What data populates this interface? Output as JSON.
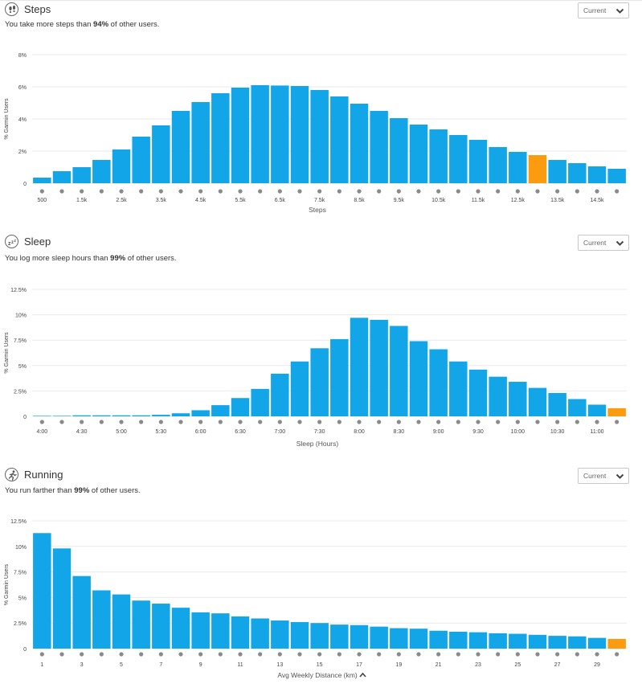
{
  "colors": {
    "bar": "#12a6e8",
    "highlight": "#fb9b0f",
    "grid": "#e9e9e9",
    "dot": "#8a8a8a",
    "text": "#333333"
  },
  "sections": [
    {
      "id": "steps",
      "icon": "footprints-icon",
      "title": "Steps",
      "subtitle_pre": "You take more steps than ",
      "subtitle_pct": "94%",
      "subtitle_post": " of other users.",
      "dropdown_value": "Current",
      "chart_data": {
        "type": "bar",
        "ylabel": "% Garmin Users",
        "xlabel": "Steps",
        "ylim": [
          0,
          8
        ],
        "yticks": [
          0,
          2,
          4,
          6,
          8
        ],
        "ytick_labels": [
          "0",
          "2%",
          "4%",
          "6%",
          "8%"
        ],
        "x_tick_labels": [
          "500",
          "1.5k",
          "2.5k",
          "3.5k",
          "4.5k",
          "5.5k",
          "6.5k",
          "7.5k",
          "8.5k",
          "9.5k",
          "10.5k",
          "11.5k",
          "12.5k",
          "13.5k",
          "14.5k"
        ],
        "values": [
          0.35,
          0.75,
          1.0,
          1.45,
          2.1,
          2.9,
          3.6,
          4.5,
          5.05,
          5.6,
          5.95,
          6.1,
          6.08,
          6.05,
          5.8,
          5.4,
          4.95,
          4.5,
          4.05,
          3.65,
          3.35,
          3.0,
          2.7,
          2.25,
          1.95,
          1.75,
          1.45,
          1.25,
          1.05,
          0.9
        ],
        "highlight_index": 25,
        "grid": true,
        "legend": "none"
      }
    },
    {
      "id": "sleep",
      "icon": "sleep-zzz-icon",
      "title": "Sleep",
      "subtitle_pre": "You log more sleep hours than ",
      "subtitle_pct": "99%",
      "subtitle_post": " of other users.",
      "dropdown_value": "Current",
      "chart_data": {
        "type": "bar",
        "ylabel": "% Garmin Users",
        "xlabel": "Sleep (Hours)",
        "ylim": [
          0,
          12.5
        ],
        "yticks": [
          0,
          2.5,
          5,
          7.5,
          10,
          12.5
        ],
        "ytick_labels": [
          "0",
          "2.5%",
          "5%",
          "7.5%",
          "10%",
          "12.5%"
        ],
        "x_tick_labels": [
          "4:00",
          "4:30",
          "5:00",
          "5:30",
          "6:00",
          "6:30",
          "7:00",
          "7:30",
          "8:00",
          "8:30",
          "9:00",
          "9:30",
          "10:00",
          "10:30",
          "11:00"
        ],
        "values": [
          0.05,
          0.05,
          0.1,
          0.1,
          0.1,
          0.1,
          0.15,
          0.3,
          0.6,
          1.1,
          1.8,
          2.7,
          4.2,
          5.4,
          6.7,
          7.6,
          9.7,
          9.5,
          8.9,
          7.4,
          6.6,
          5.4,
          4.6,
          3.9,
          3.4,
          2.8,
          2.3,
          1.7,
          1.15,
          0.8
        ],
        "highlight_index": 29,
        "grid": true,
        "legend": "none"
      }
    },
    {
      "id": "running",
      "icon": "runner-icon",
      "title": "Running",
      "subtitle_pre": "You run farther than ",
      "subtitle_pct": "99%",
      "subtitle_post": " of other users.",
      "dropdown_value": "Current",
      "chart_data": {
        "type": "bar",
        "ylabel": "% Garmin Users",
        "xlabel": "Avg Weekly Distance (km)",
        "xlabel_icon": "chevron-up-icon",
        "ylim": [
          0,
          12.5
        ],
        "yticks": [
          0,
          2.5,
          5,
          7.5,
          10,
          12.5
        ],
        "ytick_labels": [
          "0",
          "2.5%",
          "5%",
          "7.5%",
          "10%",
          "12.5%"
        ],
        "x_tick_labels": [
          "1",
          "3",
          "5",
          "7",
          "9",
          "11",
          "13",
          "15",
          "17",
          "19",
          "21",
          "23",
          "25",
          "27",
          "29"
        ],
        "values": [
          11.3,
          9.8,
          7.1,
          5.7,
          5.3,
          4.7,
          4.4,
          4.0,
          3.55,
          3.45,
          3.15,
          2.95,
          2.75,
          2.6,
          2.5,
          2.35,
          2.3,
          2.15,
          2.0,
          1.95,
          1.75,
          1.65,
          1.6,
          1.5,
          1.45,
          1.35,
          1.25,
          1.2,
          1.05,
          0.95
        ],
        "highlight_index": 29,
        "grid": true,
        "legend": "none"
      }
    }
  ]
}
